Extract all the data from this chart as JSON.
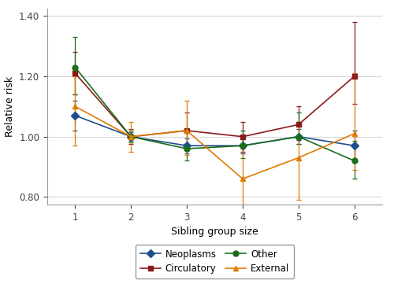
{
  "x": [
    1,
    2,
    3,
    4,
    5,
    6
  ],
  "neoplasms": {
    "y": [
      1.07,
      1.0,
      0.97,
      0.97,
      1.0,
      0.97
    ],
    "yerr_lo": [
      0.05,
      0.015,
      0.025,
      0.025,
      0.025,
      0.05
    ],
    "yerr_hi": [
      0.05,
      0.015,
      0.025,
      0.025,
      0.025,
      0.05
    ],
    "color": "#1f4e8c",
    "marker": "D",
    "label": "Neoplasms"
  },
  "circulatory": {
    "y": [
      1.21,
      1.0,
      1.02,
      1.0,
      1.04,
      1.2
    ],
    "yerr_lo": [
      0.07,
      0.025,
      0.05,
      0.05,
      0.05,
      0.09
    ],
    "yerr_hi": [
      0.07,
      0.025,
      0.06,
      0.05,
      0.06,
      0.18
    ],
    "color": "#8b1a1a",
    "marker": "s",
    "label": "Circulatory"
  },
  "other": {
    "y": [
      1.23,
      1.0,
      0.96,
      0.97,
      1.0,
      0.92
    ],
    "yerr_lo": [
      0.09,
      0.02,
      0.04,
      0.04,
      0.025,
      0.06
    ],
    "yerr_hi": [
      0.1,
      0.02,
      0.06,
      0.05,
      0.08,
      0.065
    ],
    "color": "#1a6e1a",
    "marker": "o",
    "label": "Other"
  },
  "external": {
    "y": [
      1.1,
      1.0,
      1.02,
      0.86,
      0.93,
      1.01
    ],
    "yerr_lo": [
      0.13,
      0.05,
      0.08,
      0.1,
      0.14,
      0.12
    ],
    "yerr_hi": [
      0.1,
      0.05,
      0.1,
      0.1,
      0.12,
      0.2
    ],
    "color": "#e07b00",
    "marker": "^",
    "label": "External"
  },
  "xlabel": "Sibling group size",
  "ylabel": "Relative risk",
  "ylim": [
    0.775,
    1.425
  ],
  "yticks": [
    0.8,
    1.0,
    1.2,
    1.4
  ],
  "xticks": [
    1,
    2,
    3,
    4,
    5,
    6
  ],
  "grid_color": "#d8d8d8",
  "series_order": [
    "neoplasms",
    "circulatory",
    "other",
    "external"
  ],
  "legend_order": [
    "neoplasms",
    "circulatory",
    "other",
    "external"
  ]
}
